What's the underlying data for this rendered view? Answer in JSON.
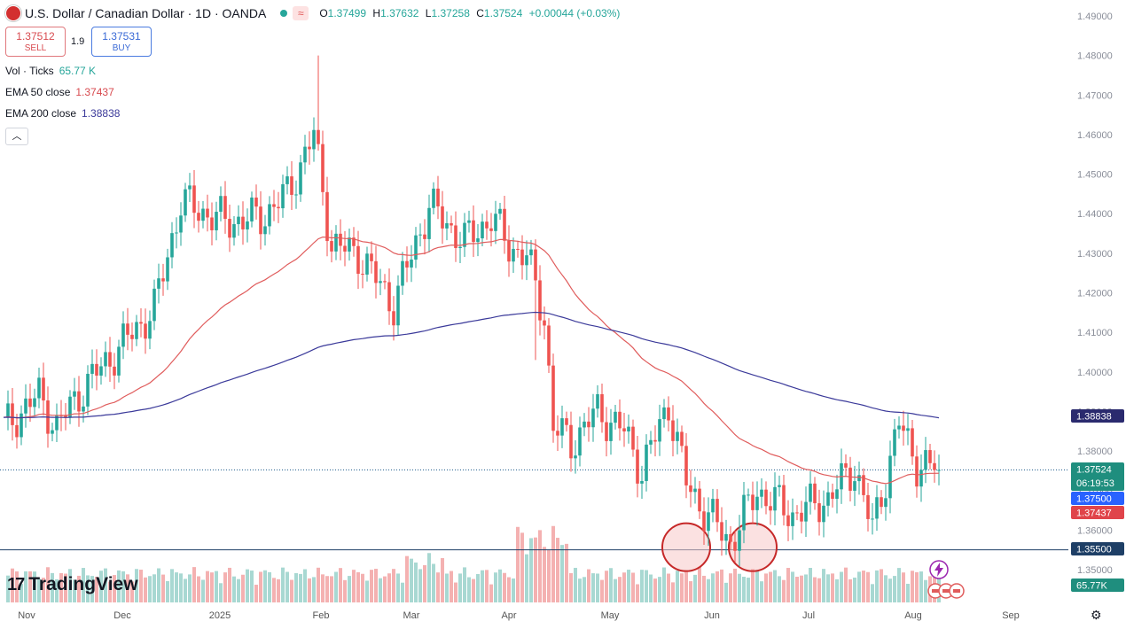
{
  "header": {
    "title": "U.S. Dollar / Canadian Dollar · 1D · OANDA",
    "ohlc": {
      "o_label": "O",
      "o": "1.37499",
      "h_label": "H",
      "h": "1.37632",
      "l_label": "L",
      "l": "1.37258",
      "c_label": "C",
      "c": "1.37524",
      "change": "+0.00044 (+0.03%)"
    }
  },
  "trade": {
    "sell_price": "1.37512",
    "sell_label": "SELL",
    "spread": "1.9",
    "buy_price": "1.37531",
    "buy_label": "BUY"
  },
  "legend": {
    "vol_label": "Vol · Ticks",
    "vol_value": "65.77 K",
    "ema50_label": "EMA 50 close",
    "ema50_value": "1.37437",
    "ema200_label": "EMA 200 close",
    "ema200_value": "1.38838",
    "collapse_icon": "chevron-up-icon"
  },
  "logo": "TradingView",
  "colors": {
    "up": "#26a69a",
    "down": "#ef5350",
    "ema50": "#e05c5c",
    "ema200": "#3b3a9a",
    "price_line": "#1a5a8a",
    "support_line": "#1e3f66",
    "vol_up": "#a8d8d2",
    "vol_down": "#f4b1b1",
    "circle": "#f8c8c8"
  },
  "chart_data": {
    "type": "candlestick",
    "title": "U.S. Dollar / Canadian Dollar · 1D · OANDA",
    "y_axis": {
      "ticks": [
        "1.49000",
        "1.48000",
        "1.47000",
        "1.46000",
        "1.45000",
        "1.44000",
        "1.43000",
        "1.42000",
        "1.41000",
        "1.40000",
        "1.39000",
        "1.38000",
        "1.37000",
        "1.36000",
        "1.35000"
      ],
      "range": [
        1.35,
        1.491
      ]
    },
    "x_axis": {
      "ticks": [
        "Nov",
        "Dec",
        "2025",
        "Feb",
        "Mar",
        "Apr",
        "May",
        "Jun",
        "Jul",
        "Aug",
        "Sep"
      ]
    },
    "price_labels": [
      {
        "text": "1.38838",
        "value": 1.38838,
        "kind": "ema200"
      },
      {
        "text": "1.37524",
        "value": 1.37524,
        "kind": "last",
        "countdown": "06:19:53"
      },
      {
        "text": "1.37500",
        "value": 1.375,
        "kind": "level"
      },
      {
        "text": "1.37437",
        "value": 1.37437,
        "kind": "ema50"
      },
      {
        "text": "1.35500",
        "value": 1.355,
        "kind": "support"
      },
      {
        "text": "65.77K",
        "value": 65.77,
        "kind": "volume"
      }
    ],
    "horizontal_lines": [
      {
        "name": "last-price-line",
        "value": 1.37524,
        "style": "dotted"
      },
      {
        "name": "support-line",
        "value": 1.355,
        "style": "solid"
      }
    ],
    "highlight_circles": [
      {
        "name": "mid-june-low",
        "date_index": 154,
        "price": 1.355
      },
      {
        "name": "early-july-low",
        "date_index": 169,
        "price": 1.355
      }
    ],
    "series": [
      {
        "name": "USD/CAD close (approx.)",
        "anchors": [
          [
            0,
            1.386
          ],
          [
            8,
            1.394
          ],
          [
            12,
            1.386
          ],
          [
            18,
            1.396
          ],
          [
            26,
            1.406
          ],
          [
            34,
            1.416
          ],
          [
            40,
            1.443
          ],
          [
            50,
            1.438
          ],
          [
            58,
            1.439
          ],
          [
            64,
            1.445
          ],
          [
            70,
            1.46
          ],
          [
            74,
            1.432
          ],
          [
            80,
            1.43
          ],
          [
            88,
            1.417
          ],
          [
            96,
            1.442
          ],
          [
            104,
            1.433
          ],
          [
            110,
            1.439
          ],
          [
            114,
            1.432
          ],
          [
            118,
            1.429
          ],
          [
            122,
            1.414
          ],
          [
            124,
            1.386
          ],
          [
            128,
            1.382
          ],
          [
            134,
            1.39
          ],
          [
            140,
            1.385
          ],
          [
            144,
            1.375
          ],
          [
            150,
            1.392
          ],
          [
            154,
            1.372
          ],
          [
            158,
            1.365
          ],
          [
            164,
            1.357
          ],
          [
            170,
            1.37
          ],
          [
            178,
            1.364
          ],
          [
            186,
            1.368
          ],
          [
            192,
            1.376
          ],
          [
            196,
            1.36
          ],
          [
            202,
            1.387
          ],
          [
            206,
            1.377
          ],
          [
            210,
            1.3752
          ]
        ]
      },
      {
        "name": "EMA 50 close",
        "last": 1.37437
      },
      {
        "name": "EMA 200 close",
        "last": 1.38838
      },
      {
        "name": "Vol · Ticks",
        "last": 65.77,
        "unit": "K"
      }
    ]
  }
}
